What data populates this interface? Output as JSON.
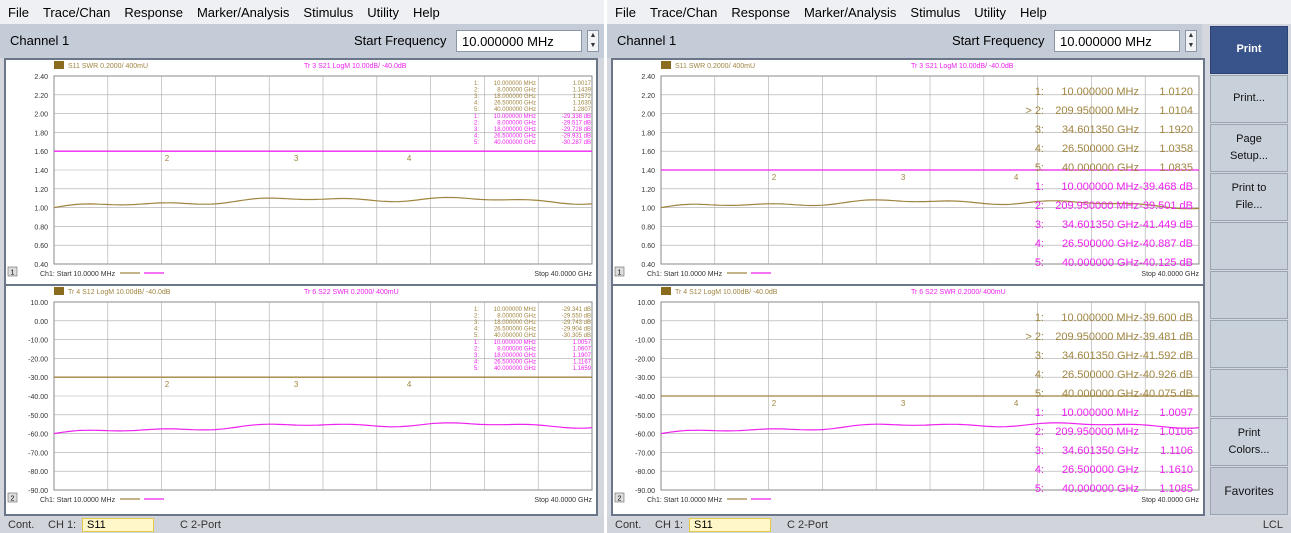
{
  "menus": [
    "File",
    "Trace/Chan",
    "Response",
    "Marker/Analysis",
    "Stimulus",
    "Utility",
    "Help"
  ],
  "channel_title": "Channel 1",
  "start_freq_label": "Start Frequency",
  "start_freq_value": "10.000000 MHz",
  "softkeys": [
    "Print",
    "Print...",
    "Page Setup...",
    "Print to File...",
    "",
    "",
    "",
    "",
    "Print Colors...",
    "Favorites"
  ],
  "status": {
    "mode": "Cont.",
    "ch": "CH 1:",
    "param": "S11",
    "cal": "C 2-Port",
    "lcl": "LCL"
  },
  "colors": {
    "tan": "#a08540",
    "magenta": "#ee22ee",
    "grid": "#999999",
    "hilite": "#38548a"
  },
  "charts": [
    {
      "header_a": "S11 SWR 0.2000/ 400mU",
      "header_b": "Tr 3 S21 LogM 10.00dB/ -40.0dB",
      "header_a_color": "tan",
      "header_b_color": "magenta",
      "yticks": [
        "2.40",
        "2.20",
        "2.00",
        "1.80",
        "1.60",
        "1.40",
        "1.20",
        "1.00",
        "0.80",
        "0.60",
        "0.40"
      ],
      "start": "Ch1: Start 10.0000 MHz",
      "stop": "Stop 40.0000 GHz",
      "num": "1",
      "magenta_level": "1.60",
      "big": false,
      "marker_rows": [
        {
          "n": "1:",
          "f": "10.000000 MHz",
          "v": "1.0017",
          "c": "tan"
        },
        {
          "n": "2:",
          "f": "8.000000 GHz",
          "v": "1.1439",
          "c": "tan"
        },
        {
          "n": "3:",
          "f": "18.000000 GHz",
          "v": "1.1572",
          "c": "tan"
        },
        {
          "n": "4:",
          "f": "26.500000 GHz",
          "v": "1.1630",
          "c": "tan"
        },
        {
          "n": "5:",
          "f": "40.000000 GHz",
          "v": "1.2807",
          "c": "tan"
        },
        {
          "n": "1:",
          "f": "10.000000 MHz",
          "v": "-29.338 dB",
          "c": "magenta"
        },
        {
          "n": "2:",
          "f": "8.000000 GHz",
          "v": "-29.517 dB",
          "c": "magenta"
        },
        {
          "n": "3:",
          "f": "18.000000 GHz",
          "v": "-29.728 dB",
          "c": "magenta"
        },
        {
          "n": "4:",
          "f": "26.500000 GHz",
          "v": "-29.931 dB",
          "c": "magenta"
        },
        {
          "n": "5:",
          "f": "40.000000 GHz",
          "v": "-30.287 dB",
          "c": "magenta"
        }
      ]
    },
    {
      "header_a": "Tr 4 S12 LogM 10.00dB/ -40.0dB",
      "header_b": "Tr 6 S22 SWR 0.2000/ 400mU",
      "header_a_color": "tan",
      "header_b_color": "magenta",
      "yticks": [
        "10.00",
        "0.00",
        "-10.00",
        "-20.00",
        "-30.00",
        "-40.00",
        "-50.00",
        "-60.00",
        "-70.00",
        "-80.00",
        "-90.00"
      ],
      "start": "Ch1: Start 10.0000 MHz",
      "stop": "Stop 40.0000 GHz",
      "num": "2",
      "magenta_level": "-30.00",
      "big": false,
      "marker_rows": [
        {
          "n": "1:",
          "f": "10.000000 MHz",
          "v": "-29.341 dB",
          "c": "tan"
        },
        {
          "n": "2:",
          "f": "8.000000 GHz",
          "v": "-29.550 dB",
          "c": "tan"
        },
        {
          "n": "3:",
          "f": "18.000000 GHz",
          "v": "-29.743 dB",
          "c": "tan"
        },
        {
          "n": "4:",
          "f": "26.500000 GHz",
          "v": "-29.904 dB",
          "c": "tan"
        },
        {
          "n": "5:",
          "f": "40.000000 GHz",
          "v": "-30.305 dB",
          "c": "tan"
        },
        {
          "n": "1:",
          "f": "10.000000 MHz",
          "v": "1.0057",
          "c": "magenta"
        },
        {
          "n": "2:",
          "f": "8.000000 GHz",
          "v": "1.0607",
          "c": "magenta"
        },
        {
          "n": "3:",
          "f": "18.000000 GHz",
          "v": "1.1907",
          "c": "magenta"
        },
        {
          "n": "4:",
          "f": "26.500000 GHz",
          "v": "1.1167",
          "c": "magenta"
        },
        {
          "n": "5:",
          "f": "40.000000 GHz",
          "v": "1.1659",
          "c": "magenta"
        }
      ]
    },
    {
      "header_a": "S11 SWR 0.2000/ 400mU",
      "header_b": "Tr 3 S21 LogM 10.00dB/ -40.0dB",
      "header_a_color": "tan",
      "header_b_color": "magenta",
      "yticks": [
        "2.40",
        "2.20",
        "2.00",
        "1.80",
        "1.60",
        "1.40",
        "1.20",
        "1.00",
        "0.80",
        "0.60",
        "0.40"
      ],
      "start": "Ch1: Start 10.0000 MHz",
      "stop": "Stop 40.0000 GHz",
      "num": "1",
      "magenta_level": "1.40",
      "big": true,
      "marker_rows": [
        {
          "n": "1:",
          "f": "10.000000 MHz",
          "v": "1.0120",
          "c": "tan"
        },
        {
          "n": "> 2:",
          "f": "209.950000 MHz",
          "v": "1.0104",
          "c": "tan"
        },
        {
          "n": "3:",
          "f": "34.601350 GHz",
          "v": "1.1920",
          "c": "tan"
        },
        {
          "n": "4:",
          "f": "26.500000 GHz",
          "v": "1.0358",
          "c": "tan"
        },
        {
          "n": "5:",
          "f": "40.000000 GHz",
          "v": "1.0835",
          "c": "tan"
        },
        {
          "n": "1:",
          "f": "10.000000 MHz",
          "v": "-39.468 dB",
          "c": "magenta"
        },
        {
          "n": "2:",
          "f": "209.950000 MHz",
          "v": "-39.501 dB",
          "c": "magenta"
        },
        {
          "n": "3:",
          "f": "34.601350 GHz",
          "v": "-41.449 dB",
          "c": "magenta"
        },
        {
          "n": "4:",
          "f": "26.500000 GHz",
          "v": "-40.887 dB",
          "c": "magenta"
        },
        {
          "n": "5:",
          "f": "40.000000 GHz",
          "v": "-40.125 dB",
          "c": "magenta"
        }
      ]
    },
    {
      "header_a": "Tr 4 S12 LogM 10.00dB/ -40.0dB",
      "header_b": "Tr 6 S22 SWR 0.2000/ 400mU",
      "header_a_color": "tan",
      "header_b_color": "magenta",
      "yticks": [
        "10.00",
        "0.00",
        "-10.00",
        "-20.00",
        "-30.00",
        "-40.00",
        "-50.00",
        "-60.00",
        "-70.00",
        "-80.00",
        "-90.00"
      ],
      "start": "Ch1: Start 10.0000 MHz",
      "stop": "Stop 40.0000 GHz",
      "num": "2",
      "magenta_level": "-40.00",
      "big": true,
      "marker_rows": [
        {
          "n": "1:",
          "f": "10.000000 MHz",
          "v": "-39.600 dB",
          "c": "tan"
        },
        {
          "n": "> 2:",
          "f": "209.950000 MHz",
          "v": "-39.481 dB",
          "c": "tan"
        },
        {
          "n": "3:",
          "f": "34.601350 GHz",
          "v": "-41.592 dB",
          "c": "tan"
        },
        {
          "n": "4:",
          "f": "26.500000 GHz",
          "v": "-40.926 dB",
          "c": "tan"
        },
        {
          "n": "5:",
          "f": "40.000000 GHz",
          "v": "-40.075 dB",
          "c": "tan"
        },
        {
          "n": "1:",
          "f": "10.000000 MHz",
          "v": "1.0097",
          "c": "magenta"
        },
        {
          "n": "2:",
          "f": "209.950000 MHz",
          "v": "1.0106",
          "c": "magenta"
        },
        {
          "n": "3:",
          "f": "34.601350 GHz",
          "v": "1.1106",
          "c": "magenta"
        },
        {
          "n": "4:",
          "f": "26.500000 GHz",
          "v": "1.1610",
          "c": "magenta"
        },
        {
          "n": "5:",
          "f": "40.000000 GHz",
          "v": "1.1085",
          "c": "magenta"
        }
      ]
    }
  ]
}
